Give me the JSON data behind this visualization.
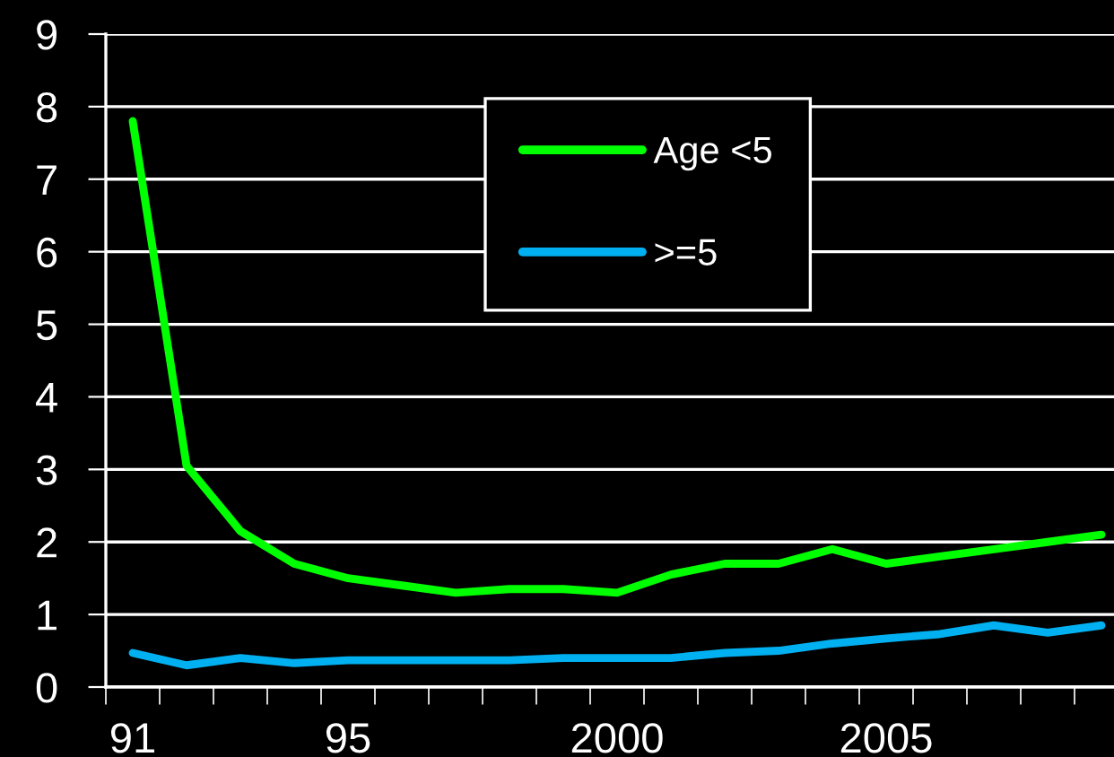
{
  "chart_data": {
    "type": "line",
    "categories": [
      "91",
      null,
      null,
      null,
      "95",
      null,
      null,
      null,
      null,
      "2000",
      null,
      null,
      null,
      null,
      "2005",
      null,
      null,
      null,
      null
    ],
    "series": [
      {
        "name": "Age <5",
        "color": "#00ff00",
        "values": [
          7.8,
          3.05,
          2.15,
          1.7,
          1.5,
          1.4,
          1.3,
          1.35,
          1.35,
          1.3,
          1.55,
          1.7,
          1.7,
          1.9,
          1.7,
          1.8,
          1.9,
          2.0,
          2.1
        ]
      },
      {
        "name": ">=5",
        "color": "#00b0f0",
        "values": [
          0.47,
          0.3,
          0.4,
          0.33,
          0.37,
          0.37,
          0.37,
          0.37,
          0.4,
          0.4,
          0.4,
          0.47,
          0.5,
          0.6,
          0.67,
          0.73,
          0.85,
          0.75,
          0.85
        ]
      }
    ],
    "ylim": [
      0,
      9
    ],
    "yticks": [
      0,
      1,
      2,
      3,
      4,
      5,
      6,
      7,
      8,
      9
    ],
    "grid": "y",
    "legend": "top",
    "marker": "none",
    "line_style": "solid"
  }
}
